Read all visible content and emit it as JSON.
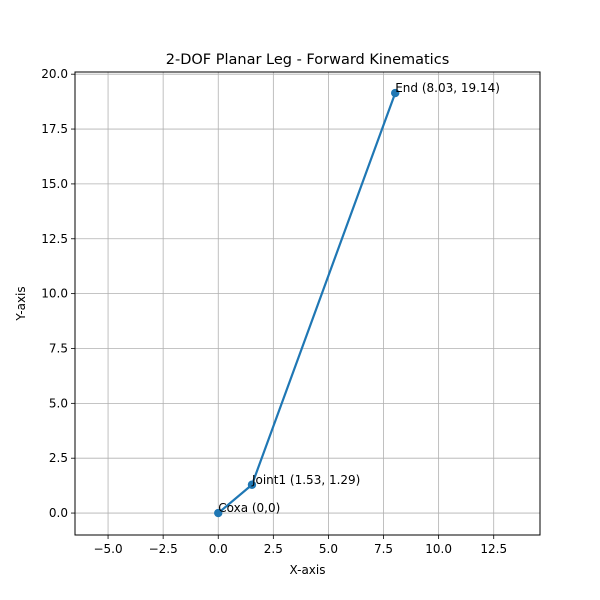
{
  "chart_data": {
    "type": "line",
    "title": "2-DOF Planar Leg - Forward Kinematics",
    "xlabel": "X-axis",
    "ylabel": "Y-axis",
    "xlim": [
      -6.5,
      14.6
    ],
    "ylim": [
      -1.0,
      20.1
    ],
    "grid": true,
    "xticks": [
      -5.0,
      -2.5,
      0.0,
      2.5,
      5.0,
      7.5,
      10.0,
      12.5
    ],
    "xtick_labels": [
      "−5.0",
      "−2.5",
      "0.0",
      "2.5",
      "5.0",
      "7.5",
      "10.0",
      "12.5"
    ],
    "yticks": [
      0.0,
      2.5,
      5.0,
      7.5,
      10.0,
      12.5,
      15.0,
      17.5,
      20.0
    ],
    "ytick_labels": [
      "0.0",
      "2.5",
      "5.0",
      "7.5",
      "10.0",
      "12.5",
      "15.0",
      "17.5",
      "20.0"
    ],
    "series": [
      {
        "color": "#1f77b4",
        "marker": "circle",
        "points": [
          {
            "x": 0.0,
            "y": 0.0,
            "label": "Coxa (0,0)"
          },
          {
            "x": 1.53,
            "y": 1.29,
            "label": "Joint1 (1.53, 1.29)"
          },
          {
            "x": 8.03,
            "y": 19.14,
            "label": "End (8.03, 19.14)"
          }
        ]
      }
    ]
  }
}
